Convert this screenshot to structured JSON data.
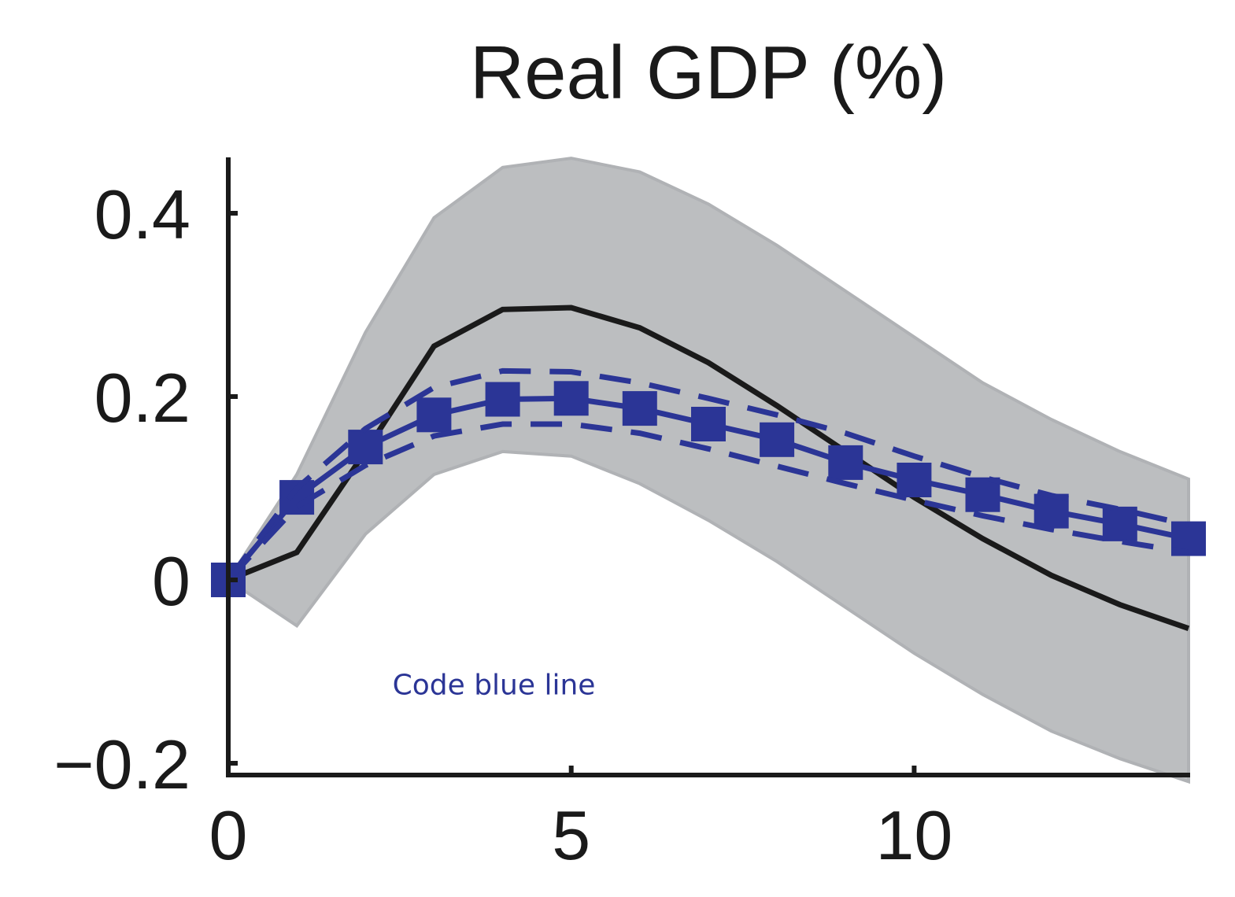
{
  "chart_data": {
    "type": "line",
    "title": "Real GDP (%)",
    "xlabel": "",
    "ylabel": "",
    "xlim": [
      0,
      14
    ],
    "ylim": [
      -0.2,
      0.46
    ],
    "x_ticks": [
      0,
      5,
      10
    ],
    "x_tick_labels": [
      "0",
      "5",
      "10"
    ],
    "y_ticks": [
      -0.2,
      0,
      0.2,
      0.4
    ],
    "y_tick_labels": [
      "−0.2",
      "0",
      "0.2",
      "0.4"
    ],
    "grid": false,
    "x": [
      0,
      1,
      2,
      3,
      4,
      5,
      6,
      7,
      8,
      9,
      10,
      11,
      12,
      13,
      14
    ],
    "band": {
      "lower": [
        0,
        -0.05,
        0.05,
        0.115,
        0.14,
        0.135,
        0.105,
        0.065,
        0.02,
        -0.03,
        -0.08,
        -0.125,
        -0.165,
        -0.195,
        -0.22
      ],
      "upper": [
        0,
        0.115,
        0.27,
        0.395,
        0.45,
        0.46,
        0.445,
        0.41,
        0.365,
        0.315,
        0.265,
        0.215,
        0.175,
        0.14,
        0.11
      ],
      "color": "#bcbec0"
    },
    "series": [
      {
        "style": "solid",
        "color": "#1a1a1a",
        "values": [
          0,
          0.03,
          0.14,
          0.255,
          0.295,
          0.297,
          0.275,
          0.237,
          0.19,
          0.14,
          0.09,
          0.045,
          0.005,
          -0.027,
          -0.053
        ]
      },
      {
        "style": "solid-square-markers",
        "color": "#2b3596",
        "values": [
          0,
          0.09,
          0.145,
          0.18,
          0.197,
          0.198,
          0.187,
          0.17,
          0.153,
          0.128,
          0.109,
          0.093,
          0.075,
          0.061,
          0.045
        ]
      },
      {
        "style": "dashed",
        "color": "#2b3596",
        "values": [
          0,
          0.1,
          0.165,
          0.21,
          0.228,
          0.227,
          0.215,
          0.198,
          0.18,
          0.16,
          0.135,
          0.112,
          0.092,
          0.077,
          0.06
        ]
      },
      {
        "style": "dashed",
        "color": "#2b3596",
        "values": [
          0,
          0.08,
          0.125,
          0.157,
          0.17,
          0.17,
          0.16,
          0.143,
          0.124,
          0.105,
          0.087,
          0.07,
          0.055,
          0.042,
          0.03
        ]
      }
    ],
    "annotation": {
      "text": "Code blue line",
      "color": "#2b3596",
      "x": 4,
      "y": -0.125
    }
  }
}
